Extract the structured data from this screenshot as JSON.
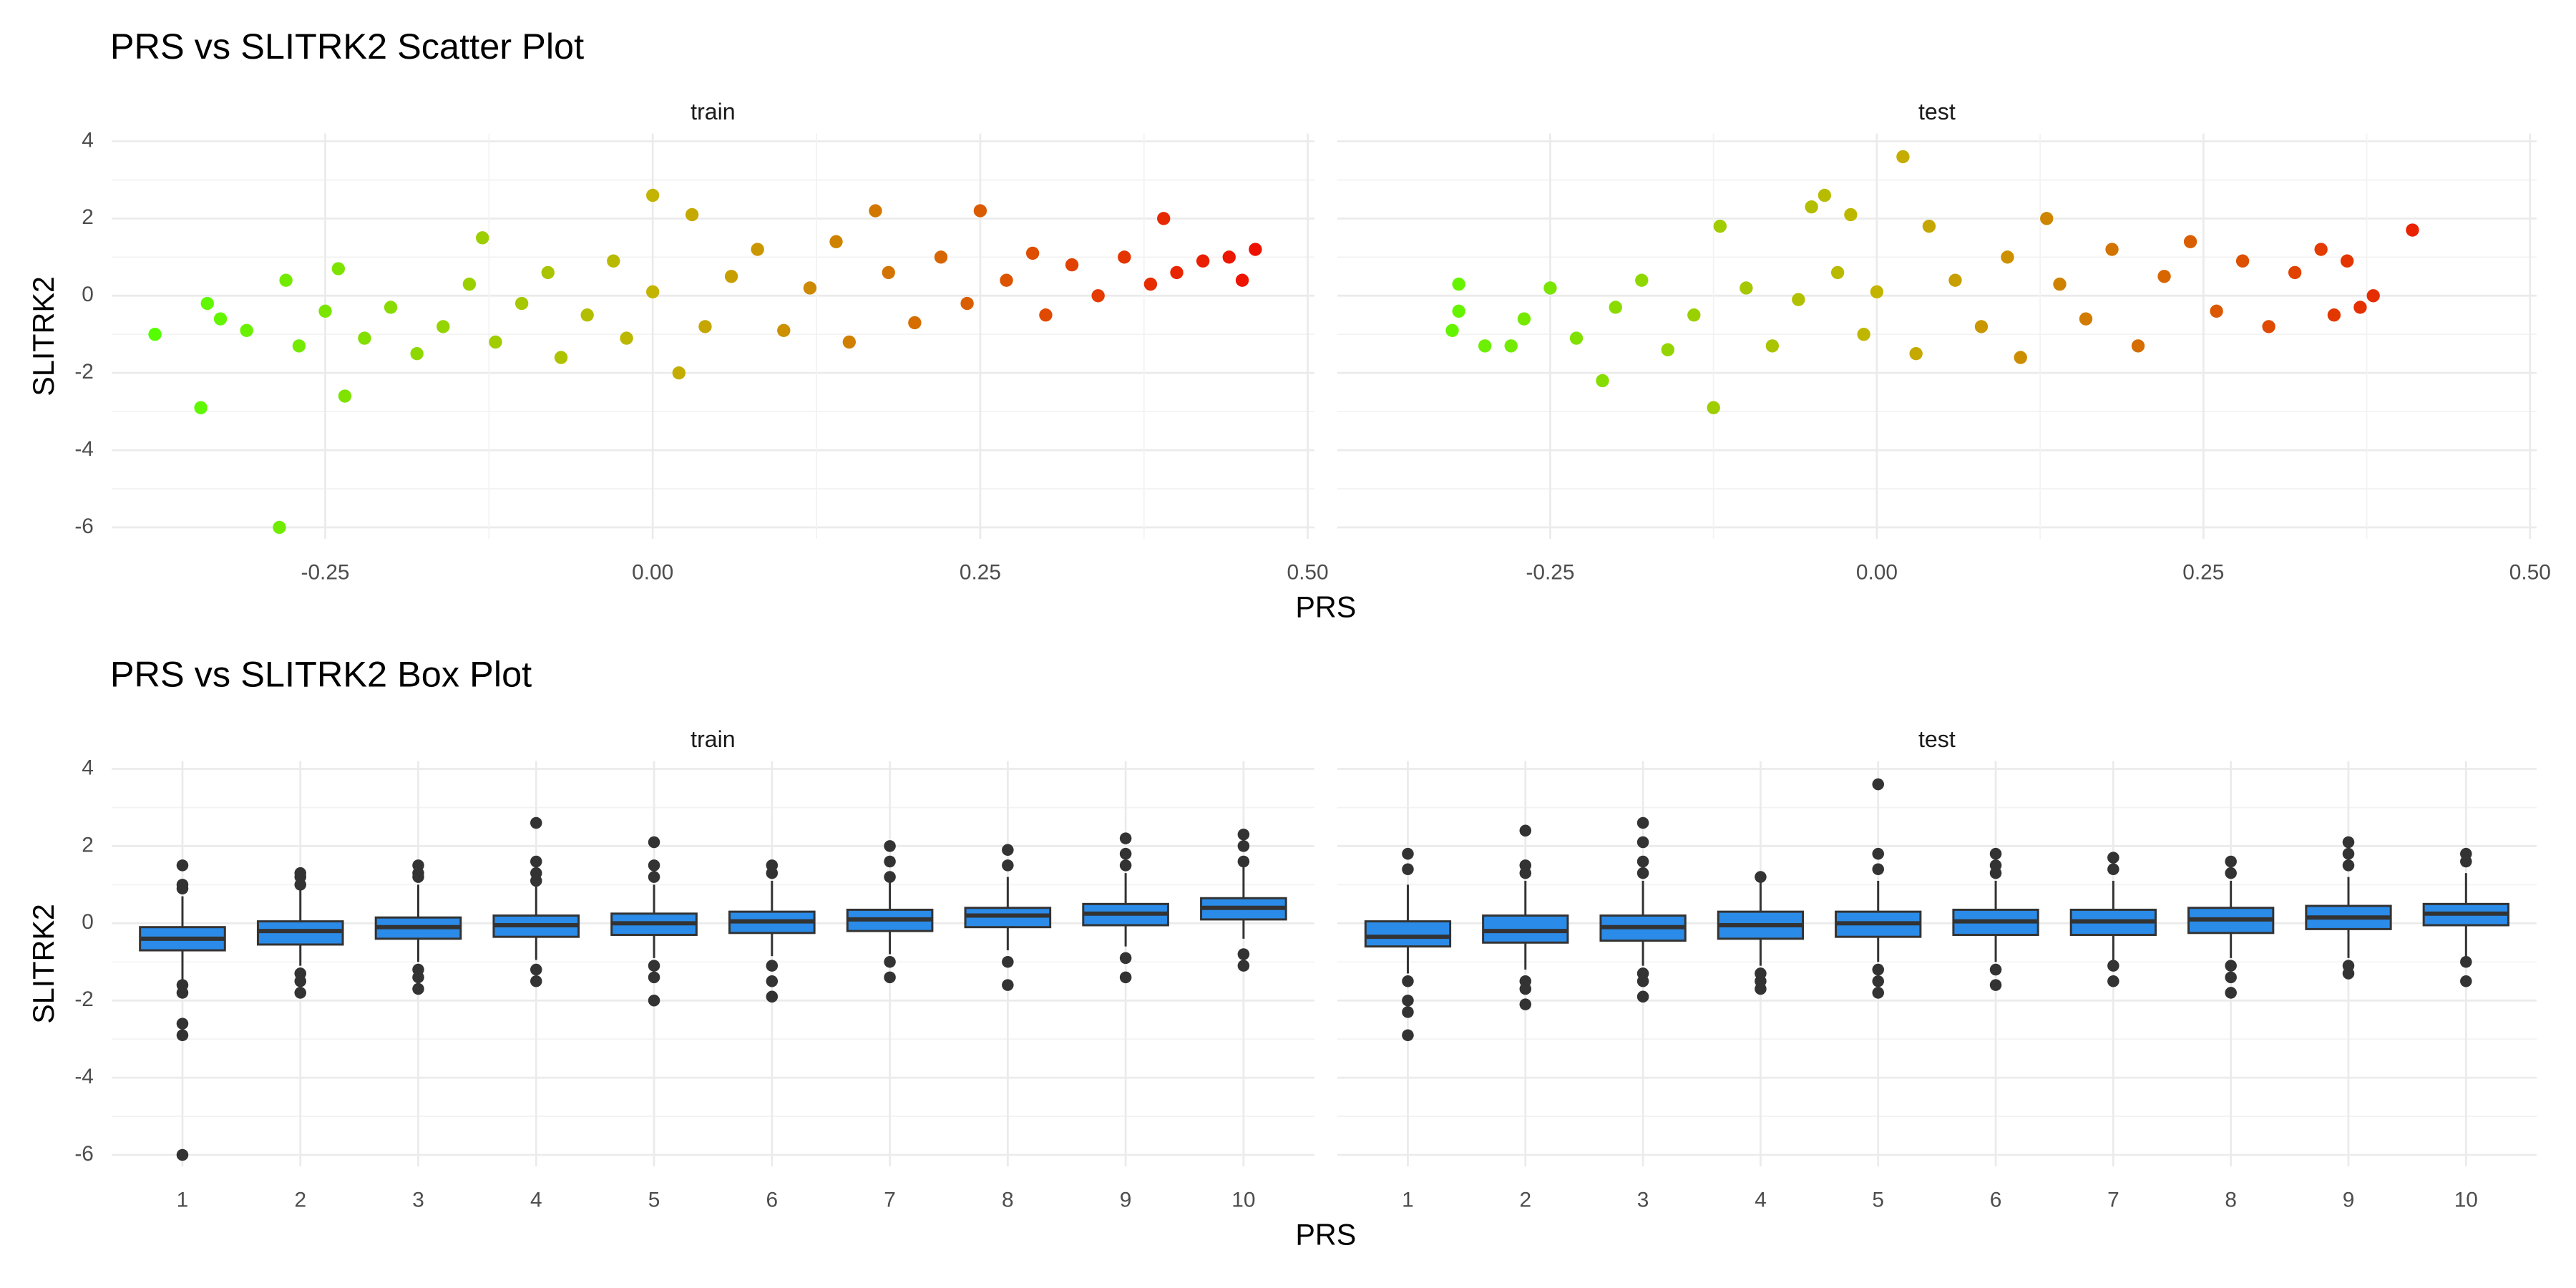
{
  "chart_data": [
    {
      "type": "scatter",
      "title": "PRS vs SLITRK2 Scatter Plot",
      "xlabel": "PRS",
      "ylabel": "SLITRK2",
      "xlim": [
        -0.413,
        0.505
      ],
      "xticks": [
        -0.25,
        {
          "value": 0,
          "label": "0.00"
        },
        0.25,
        {
          "value": 0.5,
          "label": "0.50"
        }
      ],
      "ylim": [
        -6.3,
        4.2
      ],
      "yticks": [
        -6,
        -4,
        -2,
        0,
        2,
        4
      ],
      "grid": true,
      "color_low": "#55ff00",
      "color_mid": "#c2b400",
      "color_high": "#ee1000",
      "facets": [
        {
          "name": "train",
          "x": [
            -0.38,
            -0.345,
            -0.285,
            -0.235,
            -0.34,
            -0.33,
            -0.31,
            -0.28,
            -0.27,
            -0.25,
            -0.24,
            -0.22,
            -0.2,
            -0.18,
            -0.16,
            -0.14,
            -0.13,
            -0.12,
            -0.1,
            -0.08,
            -0.07,
            -0.05,
            -0.03,
            -0.02,
            0.0,
            0.0,
            0.02,
            0.03,
            0.04,
            0.06,
            0.08,
            0.1,
            0.12,
            0.14,
            0.15,
            0.17,
            0.18,
            0.2,
            0.22,
            0.24,
            0.25,
            0.27,
            0.29,
            0.3,
            0.32,
            0.34,
            0.36,
            0.38,
            0.39,
            0.4,
            0.42,
            0.44,
            0.45,
            0.46
          ],
          "y": [
            -1.0,
            -2.9,
            -6.0,
            -2.6,
            -0.2,
            -0.6,
            -0.9,
            0.4,
            -1.3,
            -0.4,
            0.7,
            -1.1,
            -0.3,
            -1.5,
            -0.8,
            0.3,
            1.5,
            -1.2,
            -0.2,
            0.6,
            -1.6,
            -0.5,
            0.9,
            -1.1,
            2.6,
            0.1,
            -2.0,
            2.1,
            -0.8,
            0.5,
            1.2,
            -0.9,
            0.2,
            1.4,
            -1.2,
            2.2,
            0.6,
            -0.7,
            1.0,
            -0.2,
            2.2,
            0.4,
            1.1,
            -0.5,
            0.8,
            0.0,
            1.0,
            0.3,
            2.0,
            0.6,
            0.9,
            1.0,
            0.4,
            1.2
          ]
        },
        {
          "name": "test",
          "x": [
            -0.32,
            -0.32,
            -0.325,
            -0.3,
            -0.28,
            -0.27,
            -0.25,
            -0.23,
            -0.21,
            -0.2,
            -0.18,
            -0.16,
            -0.14,
            -0.125,
            -0.12,
            -0.1,
            -0.08,
            -0.06,
            -0.05,
            -0.04,
            -0.03,
            -0.02,
            -0.01,
            0.0,
            0.02,
            0.03,
            0.04,
            0.06,
            0.08,
            0.1,
            0.11,
            0.13,
            0.14,
            0.16,
            0.18,
            0.2,
            0.22,
            0.24,
            0.26,
            0.28,
            0.3,
            0.32,
            0.34,
            0.35,
            0.36,
            0.37,
            0.38,
            0.41
          ],
          "y": [
            0.3,
            -0.4,
            -0.9,
            -1.3,
            -1.3,
            -0.6,
            0.2,
            -1.1,
            -2.2,
            -0.3,
            0.4,
            -1.4,
            -0.5,
            -2.9,
            1.8,
            0.2,
            -1.3,
            -0.1,
            2.3,
            2.6,
            0.6,
            2.1,
            -1.0,
            0.1,
            3.6,
            -1.5,
            1.8,
            0.4,
            -0.8,
            1.0,
            -1.6,
            2.0,
            0.3,
            -0.6,
            1.2,
            -1.3,
            0.5,
            1.4,
            -0.4,
            0.9,
            -0.8,
            0.6,
            1.2,
            -0.5,
            0.9,
            -0.3,
            0.0,
            1.7
          ]
        }
      ]
    },
    {
      "type": "box",
      "title": "PRS vs SLITRK2 Box Plot",
      "xlabel": "PRS",
      "ylabel": "SLITRK2",
      "categories": [
        "1",
        "2",
        "3",
        "4",
        "5",
        "6",
        "7",
        "8",
        "9",
        "10"
      ],
      "ylim": [
        -6.3,
        4.2
      ],
      "yticks": [
        -6,
        -4,
        -2,
        0,
        2,
        4
      ],
      "grid": true,
      "color": "#2b8be8",
      "facets": [
        {
          "name": "train",
          "boxes": [
            {
              "low": -1.5,
              "q1": -0.7,
              "median": -0.4,
              "q3": -0.1,
              "high": 0.7,
              "outliers": [
                1.5,
                1.0,
                0.9,
                -1.6,
                -1.8,
                -2.6,
                -2.9,
                -6.0
              ]
            },
            {
              "low": -1.1,
              "q1": -0.55,
              "median": -0.2,
              "q3": 0.05,
              "high": 0.85,
              "outliers": [
                1.3,
                1.2,
                1.0,
                -1.3,
                -1.5,
                -1.8
              ]
            },
            {
              "low": -1.0,
              "q1": -0.4,
              "median": -0.1,
              "q3": 0.15,
              "high": 1.0,
              "outliers": [
                1.5,
                1.3,
                1.2,
                -1.2,
                -1.4,
                -1.7
              ]
            },
            {
              "low": -0.95,
              "q1": -0.35,
              "median": -0.05,
              "q3": 0.2,
              "high": 1.0,
              "outliers": [
                2.6,
                1.6,
                1.3,
                1.1,
                -1.2,
                -1.5
              ]
            },
            {
              "low": -0.9,
              "q1": -0.3,
              "median": 0.0,
              "q3": 0.25,
              "high": 1.0,
              "outliers": [
                2.1,
                1.5,
                1.2,
                -1.1,
                -1.4,
                -2.0
              ]
            },
            {
              "low": -0.85,
              "q1": -0.25,
              "median": 0.05,
              "q3": 0.3,
              "high": 1.1,
              "outliers": [
                1.5,
                1.3,
                -1.1,
                -1.5,
                -1.9
              ]
            },
            {
              "low": -0.8,
              "q1": -0.2,
              "median": 0.1,
              "q3": 0.35,
              "high": 1.1,
              "outliers": [
                2.0,
                1.6,
                1.2,
                -1.0,
                -1.4
              ]
            },
            {
              "low": -0.7,
              "q1": -0.1,
              "median": 0.2,
              "q3": 0.4,
              "high": 1.2,
              "outliers": [
                1.9,
                1.5,
                -1.0,
                -1.6
              ]
            },
            {
              "low": -0.6,
              "q1": -0.05,
              "median": 0.25,
              "q3": 0.5,
              "high": 1.3,
              "outliers": [
                2.2,
                1.8,
                1.5,
                -0.9,
                -1.4
              ]
            },
            {
              "low": -0.4,
              "q1": 0.1,
              "median": 0.4,
              "q3": 0.65,
              "high": 1.45,
              "outliers": [
                2.3,
                2.0,
                1.6,
                -0.8,
                -1.1
              ]
            }
          ]
        },
        {
          "name": "test",
          "boxes": [
            {
              "low": -1.3,
              "q1": -0.6,
              "median": -0.35,
              "q3": 0.05,
              "high": 1.0,
              "outliers": [
                1.8,
                1.4,
                -1.5,
                -2.0,
                -2.3,
                -2.9
              ]
            },
            {
              "low": -1.2,
              "q1": -0.5,
              "median": -0.2,
              "q3": 0.2,
              "high": 1.1,
              "outliers": [
                2.4,
                1.5,
                1.3,
                -1.5,
                -1.7,
                -2.1
              ]
            },
            {
              "low": -1.1,
              "q1": -0.45,
              "median": -0.1,
              "q3": 0.2,
              "high": 1.1,
              "outliers": [
                2.6,
                2.1,
                1.6,
                1.3,
                -1.3,
                -1.5,
                -1.9
              ]
            },
            {
              "low": -1.1,
              "q1": -0.4,
              "median": -0.05,
              "q3": 0.3,
              "high": 1.1,
              "outliers": [
                1.2,
                -1.3,
                -1.5,
                -1.7
              ]
            },
            {
              "low": -1.0,
              "q1": -0.35,
              "median": 0.0,
              "q3": 0.3,
              "high": 1.1,
              "outliers": [
                3.6,
                1.8,
                1.4,
                -1.2,
                -1.5,
                -1.8
              ]
            },
            {
              "low": -1.0,
              "q1": -0.3,
              "median": 0.05,
              "q3": 0.35,
              "high": 1.1,
              "outliers": [
                1.8,
                1.5,
                1.3,
                -1.2,
                -1.6
              ]
            },
            {
              "low": -1.0,
              "q1": -0.3,
              "median": 0.05,
              "q3": 0.35,
              "high": 1.1,
              "outliers": [
                1.7,
                1.4,
                -1.1,
                -1.5
              ]
            },
            {
              "low": -0.9,
              "q1": -0.25,
              "median": 0.1,
              "q3": 0.4,
              "high": 1.1,
              "outliers": [
                1.6,
                1.3,
                -1.1,
                -1.4,
                -1.8
              ]
            },
            {
              "low": -0.9,
              "q1": -0.15,
              "median": 0.15,
              "q3": 0.45,
              "high": 1.2,
              "outliers": [
                2.1,
                1.8,
                1.5,
                -1.1,
                -1.3
              ]
            },
            {
              "low": -0.9,
              "q1": -0.05,
              "median": 0.25,
              "q3": 0.5,
              "high": 1.3,
              "outliers": [
                1.8,
                1.6,
                -1.0,
                -1.5
              ]
            }
          ]
        }
      ]
    }
  ]
}
